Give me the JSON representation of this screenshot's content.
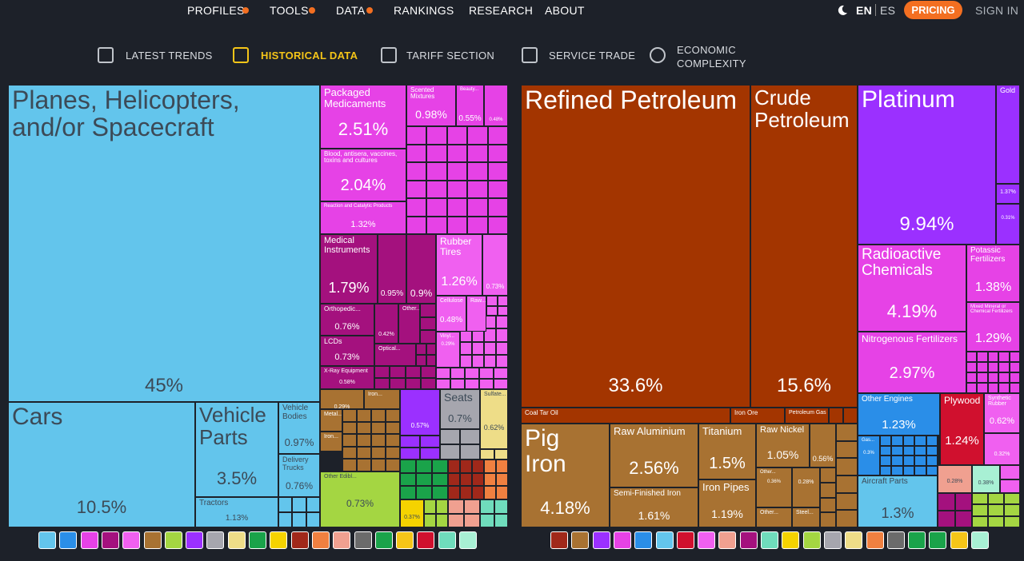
{
  "nav": {
    "items": [
      "PROFILES",
      "TOOLS",
      "DATA",
      "RANKINGS",
      "RESEARCH",
      "ABOUT"
    ],
    "lang_active": "EN",
    "lang_other": "ES",
    "pricing": "PRICING",
    "sign_in": "SIGN IN"
  },
  "subnav": [
    "LATEST TRENDS",
    "HISTORICAL DATA",
    "TARIFF SECTION",
    "SERVICE TRADE",
    "ECONOMIC COMPLEXITY"
  ],
  "left_treemap": {
    "tiles": [
      {
        "label": "Planes, Helicopters, and/or Spacecraft",
        "value": "45%"
      },
      {
        "label": "Cars",
        "value": "10.5%"
      },
      {
        "label": "Vehicle Parts",
        "value": "3.5%"
      },
      {
        "label": "Vehicle Bodies",
        "value": "0.97%"
      },
      {
        "label": "Delivery Trucks",
        "value": "0.76%"
      },
      {
        "label": "Tractors",
        "value": "1.13%"
      },
      {
        "label": "Packaged Medicaments",
        "value": "2.51%"
      },
      {
        "label": "Blood, antisera, vaccines, toxins and cultures",
        "value": "2.04%"
      },
      {
        "label": "Reaction and Catalytic Products",
        "value": "1.32%"
      },
      {
        "label": "Scented Mixtures",
        "value": "0.98%"
      },
      {
        "label": "Beauty...",
        "value": "0.55%"
      },
      {
        "value": "0.48%"
      },
      {
        "label": "Medical Instruments",
        "value": "1.79%"
      },
      {
        "value": "0.95%"
      },
      {
        "value": "0.9%"
      },
      {
        "label": "Orthopedic...",
        "value": "0.76%"
      },
      {
        "label": "LCDs",
        "value": "0.73%"
      },
      {
        "label": "X-Ray Equipment",
        "value": "0.58%"
      },
      {
        "value": "0.42%"
      },
      {
        "label": "Other..."
      },
      {
        "label": "Optical..."
      },
      {
        "label": "Rubber Tires",
        "value": "1.26%"
      },
      {
        "value": "0.73%"
      },
      {
        "label": "Cellulose",
        "value": "0.48%"
      },
      {
        "label": "Raw..."
      },
      {
        "label": "Vinyl...",
        "value": "0.29%"
      },
      {
        "value": "0.29%"
      },
      {
        "label": "Iron..."
      },
      {
        "label": "Metal..."
      },
      {
        "label": "Iron..."
      },
      {
        "value": "0.57%"
      },
      {
        "label": "Seats",
        "value": "0.7%"
      },
      {
        "label": "Sulfate...",
        "value": "0.62%"
      },
      {
        "label": "Other Edibl...",
        "value": "0.73%"
      },
      {
        "value": "0.37%"
      }
    ]
  },
  "right_treemap": {
    "tiles": [
      {
        "label": "Refined Petroleum",
        "value": "33.6%"
      },
      {
        "label": "Crude Petroleum",
        "value": "15.6%"
      },
      {
        "label": "Coal Tar Oil"
      },
      {
        "label": "Iron Ore"
      },
      {
        "label": "Petroleum Gas"
      },
      {
        "label": "Pig Iron",
        "value": "4.18%"
      },
      {
        "label": "Raw Aluminium",
        "value": "2.56%"
      },
      {
        "label": "Semi-Finished Iron",
        "value": "1.61%"
      },
      {
        "label": "Titanium",
        "value": "1.5%"
      },
      {
        "label": "Iron Pipes",
        "value": "1.19%"
      },
      {
        "label": "Raw Nickel",
        "value": "1.05%"
      },
      {
        "value": "0.56%"
      },
      {
        "label": "Other...",
        "value": "0.36%"
      },
      {
        "value": "0.28%"
      },
      {
        "label": "Other..."
      },
      {
        "label": "Steel..."
      },
      {
        "label": "Platinum",
        "value": "9.94%"
      },
      {
        "label": "Gold"
      },
      {
        "value": "1.37%"
      },
      {
        "value": "0.31%"
      },
      {
        "label": "Radioactive Chemicals",
        "value": "4.19%"
      },
      {
        "label": "Potassic Fertilizers",
        "value": "1.38%"
      },
      {
        "label": "Mixed Mineral or Chemical Fertilizers",
        "value": "1.29%"
      },
      {
        "label": "Nitrogenous Fertilizers",
        "value": "2.97%"
      },
      {
        "label": "Other Engines",
        "value": "1.23%"
      },
      {
        "label": "Gas...",
        "value": "0.3%"
      },
      {
        "label": "Plywood",
        "value": "1.24%"
      },
      {
        "label": "Synthetic Rubber",
        "value": "0.62%"
      },
      {
        "value": "0.32%"
      },
      {
        "label": "Aircraft Parts",
        "value": "1.3%"
      },
      {
        "value": "0.28%"
      },
      {
        "value": "0.38%"
      }
    ]
  }
}
